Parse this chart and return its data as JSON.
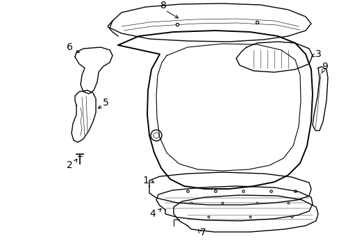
{
  "background_color": "#ffffff",
  "line_color": "#000000",
  "lw": 1.0,
  "tlw": 0.6,
  "fs": 10
}
